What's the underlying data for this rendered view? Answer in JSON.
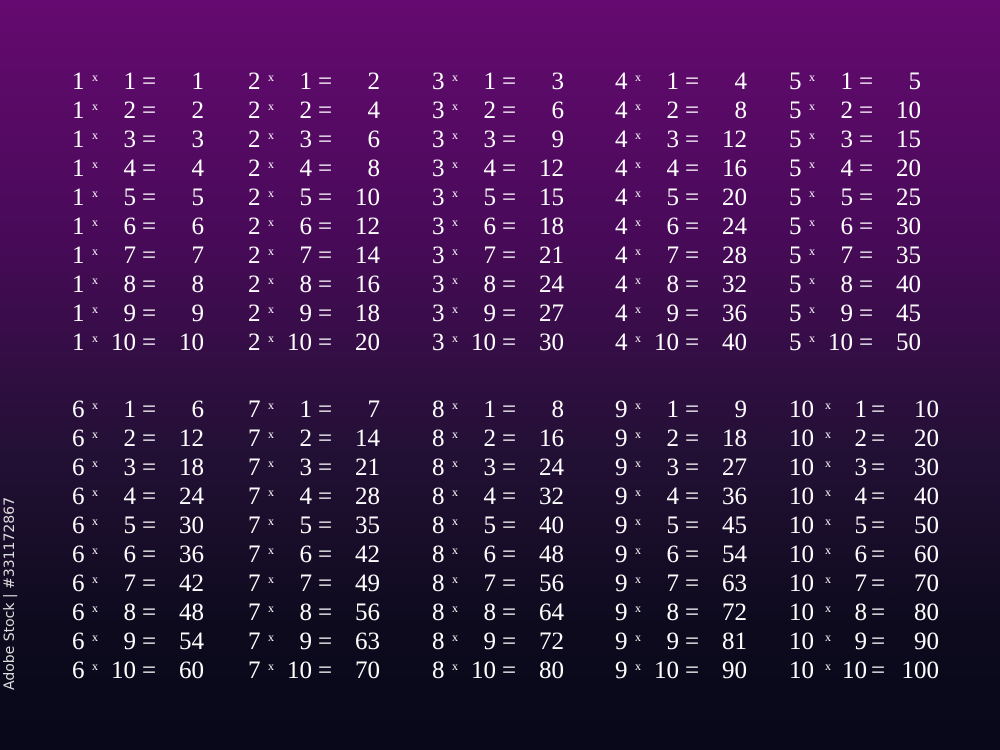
{
  "tables": [
    {
      "n": "1",
      "products": [
        "1",
        "2",
        "3",
        "4",
        "5",
        "6",
        "7",
        "8",
        "9",
        "10"
      ]
    },
    {
      "n": "2",
      "products": [
        "2",
        "4",
        "6",
        "8",
        "10",
        "12",
        "14",
        "16",
        "18",
        "20"
      ]
    },
    {
      "n": "3",
      "products": [
        "3",
        "6",
        "9",
        "12",
        "15",
        "18",
        "21",
        "24",
        "27",
        "30"
      ]
    },
    {
      "n": "4",
      "products": [
        "4",
        "8",
        "12",
        "16",
        "20",
        "24",
        "28",
        "32",
        "36",
        "40"
      ]
    },
    {
      "n": "5",
      "products": [
        "5",
        "10",
        "15",
        "20",
        "25",
        "30",
        "35",
        "40",
        "45",
        "50"
      ]
    },
    {
      "n": "6",
      "products": [
        "6",
        "12",
        "18",
        "24",
        "30",
        "36",
        "42",
        "48",
        "54",
        "60"
      ]
    },
    {
      "n": "7",
      "products": [
        "7",
        "14",
        "21",
        "28",
        "35",
        "42",
        "49",
        "56",
        "63",
        "70"
      ]
    },
    {
      "n": "8",
      "products": [
        "8",
        "16",
        "24",
        "32",
        "40",
        "48",
        "56",
        "64",
        "72",
        "80"
      ]
    },
    {
      "n": "9",
      "products": [
        "9",
        "18",
        "27",
        "36",
        "45",
        "54",
        "63",
        "72",
        "81",
        "90"
      ]
    },
    {
      "n": "10",
      "products": [
        "10",
        "20",
        "30",
        "40",
        "50",
        "60",
        "70",
        "80",
        "90",
        "100"
      ]
    }
  ],
  "multipliers": [
    "1",
    "2",
    "3",
    "4",
    "5",
    "6",
    "7",
    "8",
    "9",
    "10"
  ],
  "times_sign": "x",
  "equals_sign": "=",
  "watermark": {
    "side_text": "Adobe Stock | #331172867",
    "pattern_text": "Adobe Stock"
  },
  "colors": {
    "background_top": "#650a70",
    "background_bottom": "#08081a",
    "text": "#ffffff"
  }
}
